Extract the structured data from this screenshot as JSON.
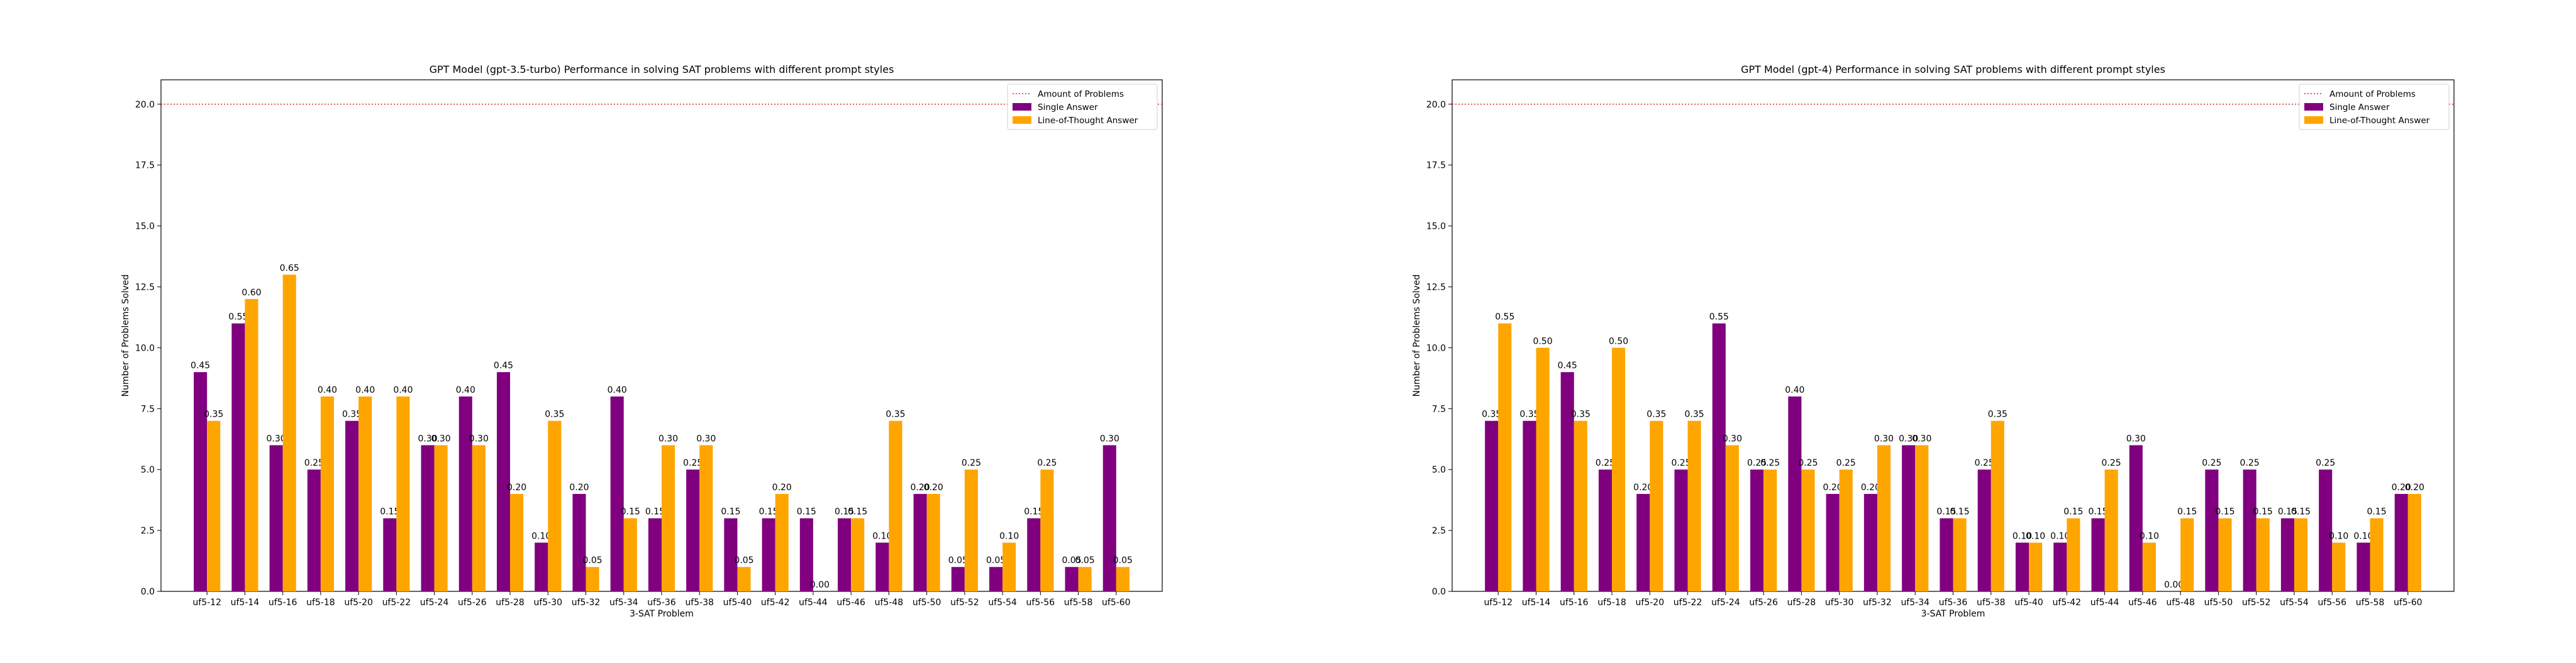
{
  "chart_data": [
    {
      "type": "bar",
      "title": "GPT Model (gpt-3.5-turbo) Performance in solving SAT problems with different prompt styles",
      "xlabel": "3-SAT Problem",
      "ylabel": "Number of Problems Solved",
      "ylim": [
        0,
        21
      ],
      "yticks": [
        "0.0",
        "2.5",
        "5.0",
        "7.5",
        "10.0",
        "12.5",
        "15.0",
        "17.5",
        "20.0"
      ],
      "categories": [
        "uf5-12",
        "uf5-14",
        "uf5-16",
        "uf5-18",
        "uf5-20",
        "uf5-22",
        "uf5-24",
        "uf5-26",
        "uf5-28",
        "uf5-30",
        "uf5-32",
        "uf5-34",
        "uf5-36",
        "uf5-38",
        "uf5-40",
        "uf5-42",
        "uf5-44",
        "uf5-46",
        "uf5-48",
        "uf5-50",
        "uf5-52",
        "uf5-54",
        "uf5-56",
        "uf5-58",
        "uf5-60"
      ],
      "hline": {
        "name": "Amount of Problems",
        "value": 20,
        "color": "#d62728"
      },
      "legend_position": "top-right",
      "series": [
        {
          "name": "Single Answer",
          "color": "#800080",
          "values": [
            9,
            11,
            6,
            5,
            7,
            3,
            6,
            8,
            9,
            2,
            4,
            8,
            3,
            5,
            3,
            3,
            3,
            3,
            2,
            4,
            1,
            1,
            3,
            1,
            6
          ],
          "labels": [
            "0.45",
            "0.55",
            "0.30",
            "0.25",
            "0.35",
            "0.15",
            "0.30",
            "0.40",
            "0.45",
            "0.10",
            "0.20",
            "0.40",
            "0.15",
            "0.25",
            "0.15",
            "0.15",
            "0.15",
            "0.15",
            "0.10",
            "0.20",
            "0.05",
            "0.05",
            "0.15",
            "0.05",
            "0.30"
          ]
        },
        {
          "name": "Line-of-Thought Answer",
          "color": "#ffa500",
          "values": [
            7,
            12,
            13,
            8,
            8,
            8,
            6,
            6,
            4,
            7,
            1,
            3,
            6,
            6,
            1,
            4,
            0,
            3,
            7,
            4,
            5,
            2,
            5,
            1,
            1
          ],
          "labels": [
            "0.35",
            "0.60",
            "0.65",
            "0.40",
            "0.40",
            "0.40",
            "0.30",
            "0.30",
            "0.20",
            "0.35",
            "0.05",
            "0.15",
            "0.30",
            "0.30",
            "0.05",
            "0.20",
            "0.00",
            "0.15",
            "0.35",
            "0.20",
            "0.25",
            "0.10",
            "0.25",
            "0.05",
            "0.05"
          ]
        }
      ]
    },
    {
      "type": "bar",
      "title": "GPT Model (gpt-4) Performance in solving SAT problems with different prompt styles",
      "xlabel": "3-SAT Problem",
      "ylabel": "Number of Problems Solved",
      "ylim": [
        0,
        21
      ],
      "yticks": [
        "0.0",
        "2.5",
        "5.0",
        "7.5",
        "10.0",
        "12.5",
        "15.0",
        "17.5",
        "20.0"
      ],
      "categories": [
        "uf5-12",
        "uf5-14",
        "uf5-16",
        "uf5-18",
        "uf5-20",
        "uf5-22",
        "uf5-24",
        "uf5-26",
        "uf5-28",
        "uf5-30",
        "uf5-32",
        "uf5-34",
        "uf5-36",
        "uf5-38",
        "uf5-40",
        "uf5-42",
        "uf5-44",
        "uf5-46",
        "uf5-48",
        "uf5-50",
        "uf5-52",
        "uf5-54",
        "uf5-56",
        "uf5-58",
        "uf5-60"
      ],
      "hline": {
        "name": "Amount of Problems",
        "value": 20,
        "color": "#d62728"
      },
      "legend_position": "top-right",
      "series": [
        {
          "name": "Single Answer",
          "color": "#800080",
          "values": [
            7,
            7,
            9,
            5,
            4,
            5,
            11,
            5,
            8,
            4,
            4,
            6,
            3,
            5,
            2,
            2,
            3,
            6,
            0,
            5,
            5,
            3,
            5,
            2,
            4
          ],
          "labels": [
            "0.35",
            "0.35",
            "0.45",
            "0.25",
            "0.20",
            "0.25",
            "0.55",
            "0.25",
            "0.40",
            "0.20",
            "0.20",
            "0.30",
            "0.15",
            "0.25",
            "0.10",
            "0.10",
            "0.15",
            "0.30",
            "0.00",
            "0.25",
            "0.25",
            "0.15",
            "0.25",
            "0.10",
            "0.20"
          ]
        },
        {
          "name": "Line-of-Thought Answer",
          "color": "#ffa500",
          "values": [
            11,
            10,
            7,
            10,
            7,
            7,
            6,
            5,
            5,
            5,
            6,
            6,
            3,
            7,
            2,
            3,
            5,
            2,
            3,
            3,
            3,
            3,
            2,
            3,
            4
          ],
          "labels": [
            "0.55",
            "0.50",
            "0.35",
            "0.50",
            "0.35",
            "0.35",
            "0.30",
            "0.25",
            "0.25",
            "0.25",
            "0.30",
            "0.30",
            "0.15",
            "0.35",
            "0.10",
            "0.15",
            "0.25",
            "0.10",
            "0.15",
            "0.15",
            "0.15",
            "0.15",
            "0.10",
            "0.15",
            "0.20"
          ]
        }
      ]
    }
  ]
}
